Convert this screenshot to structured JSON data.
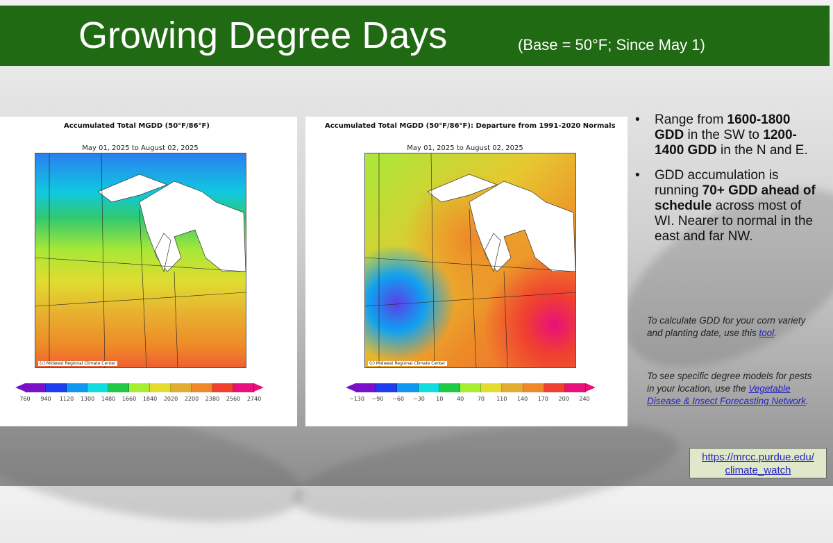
{
  "slide": {
    "title": "Growing Degree Days",
    "subtitle": "(Base = 50°F; Since May 1)",
    "title_bar_color": "#1f6a12"
  },
  "maps": [
    {
      "title": "Accumulated Total MGDD  (50°F/86°F)",
      "date_range": "May 01, 2025 to August 02, 2025",
      "credit": "(c) Midwest Regional Climate Center",
      "colorbar_ticks": [
        "760",
        "940",
        "1120",
        "1300",
        "1480",
        "1660",
        "1840",
        "2020",
        "2200",
        "2380",
        "2560",
        "2740"
      ]
    },
    {
      "title": "Accumulated Total MGDD  (50°F/86°F): Departure from 1991-2020 Normals",
      "date_range": "May 01, 2025 to August 02, 2025",
      "credit": "(c) Midwest Regional Climate Center",
      "colorbar_ticks": [
        "−130",
        "−90",
        "−60",
        "−30",
        "10",
        "40",
        "70",
        "110",
        "140",
        "170",
        "200",
        "240"
      ]
    }
  ],
  "colorbar_colors": [
    "#7a10c8",
    "#1f3ef0",
    "#0f97f2",
    "#10dde0",
    "#20c848",
    "#a8ee30",
    "#e6dc30",
    "#e2ac30",
    "#ee8828",
    "#f04030",
    "#e8107a"
  ],
  "bullets": [
    {
      "pre": "Range from ",
      "b1": "1600-1800 GDD",
      "mid": " in the SW to ",
      "b2": "1200-1400 GDD",
      "post": " in the N and E."
    },
    {
      "pre": "GDD accumulation is running ",
      "b1": "70+ GDD ahead of schedule",
      "mid": " across most of WI. Nearer to normal in the east and far NW.",
      "b2": "",
      "post": ""
    }
  ],
  "notes": {
    "corn_text": "To calculate GDD for your corn variety and planting date, use this ",
    "corn_link": "tool",
    "pests_text": "To see specific degree models for pests in your location, use the ",
    "pests_link": "Vegetable Disease & Insect Forecasting Network"
  },
  "link": {
    "line1": "https://mrcc.purdue.edu/",
    "line2": "climate_watch"
  }
}
